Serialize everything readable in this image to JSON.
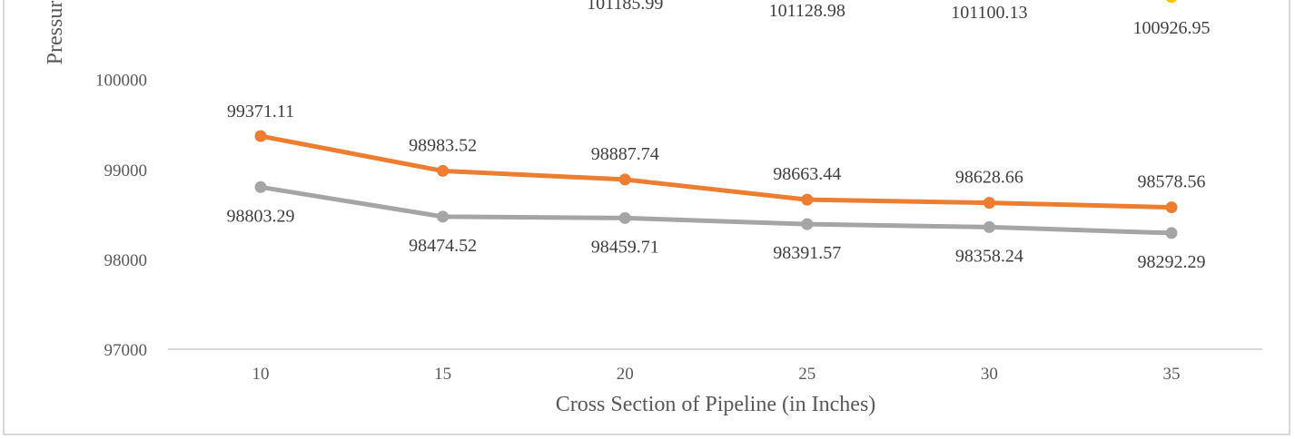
{
  "chart_data": {
    "type": "line",
    "title": "",
    "xlabel": "Cross Section of Pipeline (in Inches)",
    "ylabel": "Pressur",
    "categories": [
      "10",
      "15",
      "20",
      "25",
      "30",
      "35"
    ],
    "yticks": [
      "97000",
      "98000",
      "99000",
      "100000"
    ],
    "ylim": [
      97000,
      101900
    ],
    "grid": false,
    "series": [
      {
        "color": "#ffc000",
        "values": [
          null,
          null,
          101185.99,
          101128.98,
          101100.13,
          100926.95
        ],
        "labels": [
          "",
          "",
          "101185.99",
          "101128.98",
          "101100.13",
          "100926.95"
        ]
      },
      {
        "color": "#ed7d31",
        "values": [
          99371.11,
          98983.52,
          98887.74,
          98663.44,
          98628.66,
          98578.56
        ],
        "labels": [
          "99371.11",
          "98983.52",
          "98887.74",
          "98663.44",
          "98628.66",
          "98578.56"
        ]
      },
      {
        "color": "#a5a5a5",
        "values": [
          98803.29,
          98474.52,
          98459.71,
          98391.57,
          98358.24,
          98292.29
        ],
        "labels": [
          "98803.29",
          "98474.52",
          "98459.71",
          "98391.57",
          "98358.24",
          "98292.29"
        ]
      }
    ]
  }
}
